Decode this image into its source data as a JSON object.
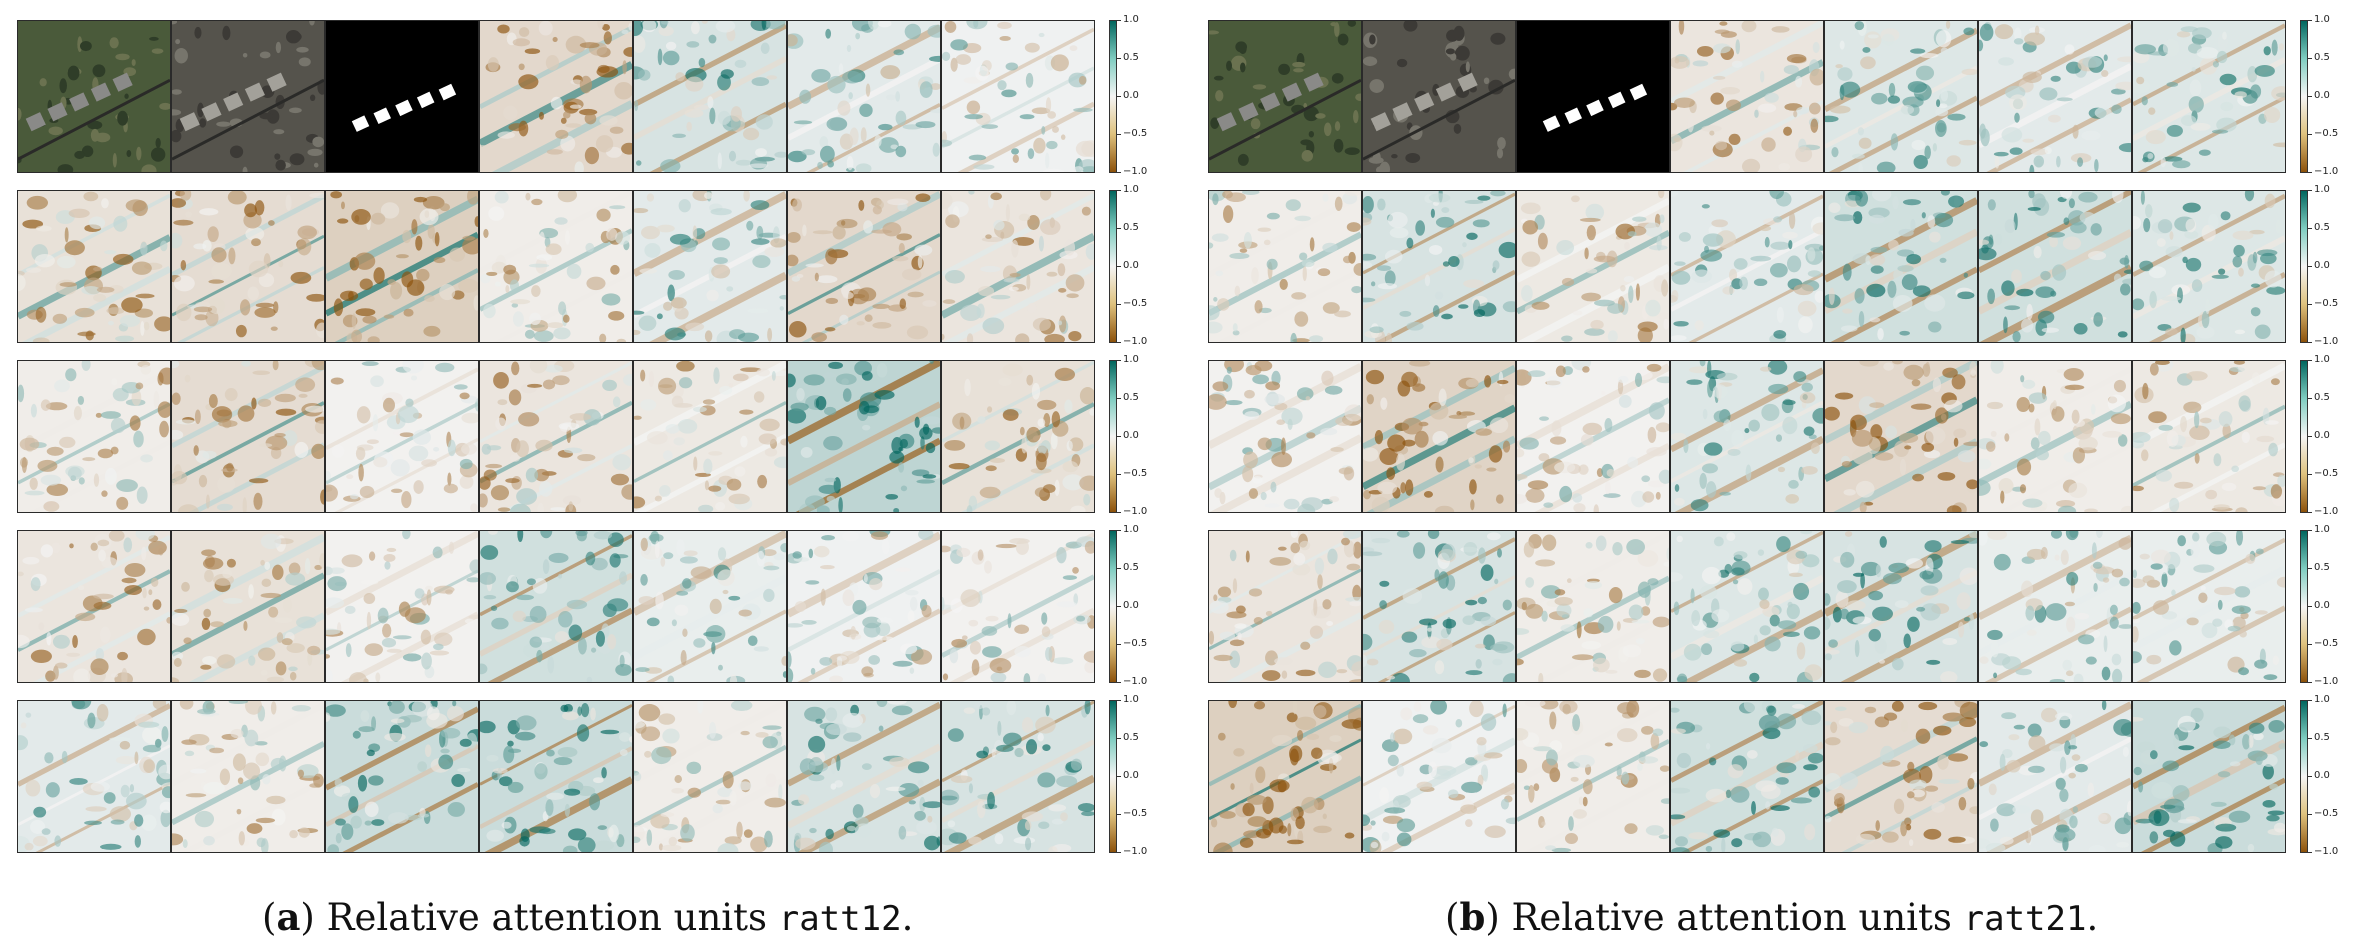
{
  "colors": {
    "brown": "#8c510a",
    "tan": "#dfc27d",
    "neutral": "#f5f5f5",
    "teal_light": "#80cdc1",
    "teal_dark": "#01665e"
  },
  "colorbar": {
    "ticks": [
      "1.0",
      "0.5",
      "0.0",
      "−0.5",
      "−1.0"
    ]
  },
  "panels": [
    {
      "caption_letter": "a",
      "caption_text": " Relative attention units ",
      "caption_code": "ratt12",
      "caption_end": ".",
      "rows": [
        [
          0.0,
          0.0,
          0.0,
          -0.35,
          0.25,
          0.15,
          0.05
        ],
        [
          -0.25,
          -0.3,
          -0.45,
          -0.1,
          0.15,
          -0.35,
          -0.2
        ],
        [
          -0.1,
          -0.3,
          -0.05,
          -0.2,
          -0.15,
          0.45,
          -0.25
        ],
        [
          -0.2,
          -0.25,
          -0.05,
          0.3,
          0.1,
          0.05,
          -0.05
        ],
        [
          0.15,
          -0.1,
          0.35,
          0.35,
          -0.1,
          0.25,
          0.25
        ]
      ]
    },
    {
      "caption_letter": "b",
      "caption_text": " Relative attention units ",
      "caption_code": "ratt21",
      "caption_end": ".",
      "rows": [
        [
          0.0,
          0.0,
          0.0,
          -0.2,
          0.2,
          0.15,
          0.2
        ],
        [
          -0.1,
          0.25,
          -0.15,
          0.15,
          0.3,
          0.3,
          0.2
        ],
        [
          -0.05,
          -0.4,
          -0.05,
          0.2,
          -0.35,
          -0.1,
          -0.15
        ],
        [
          -0.2,
          0.25,
          -0.1,
          0.2,
          0.25,
          0.1,
          0.1
        ],
        [
          -0.45,
          0.05,
          -0.1,
          0.3,
          -0.3,
          0.15,
          0.35
        ]
      ]
    }
  ]
}
